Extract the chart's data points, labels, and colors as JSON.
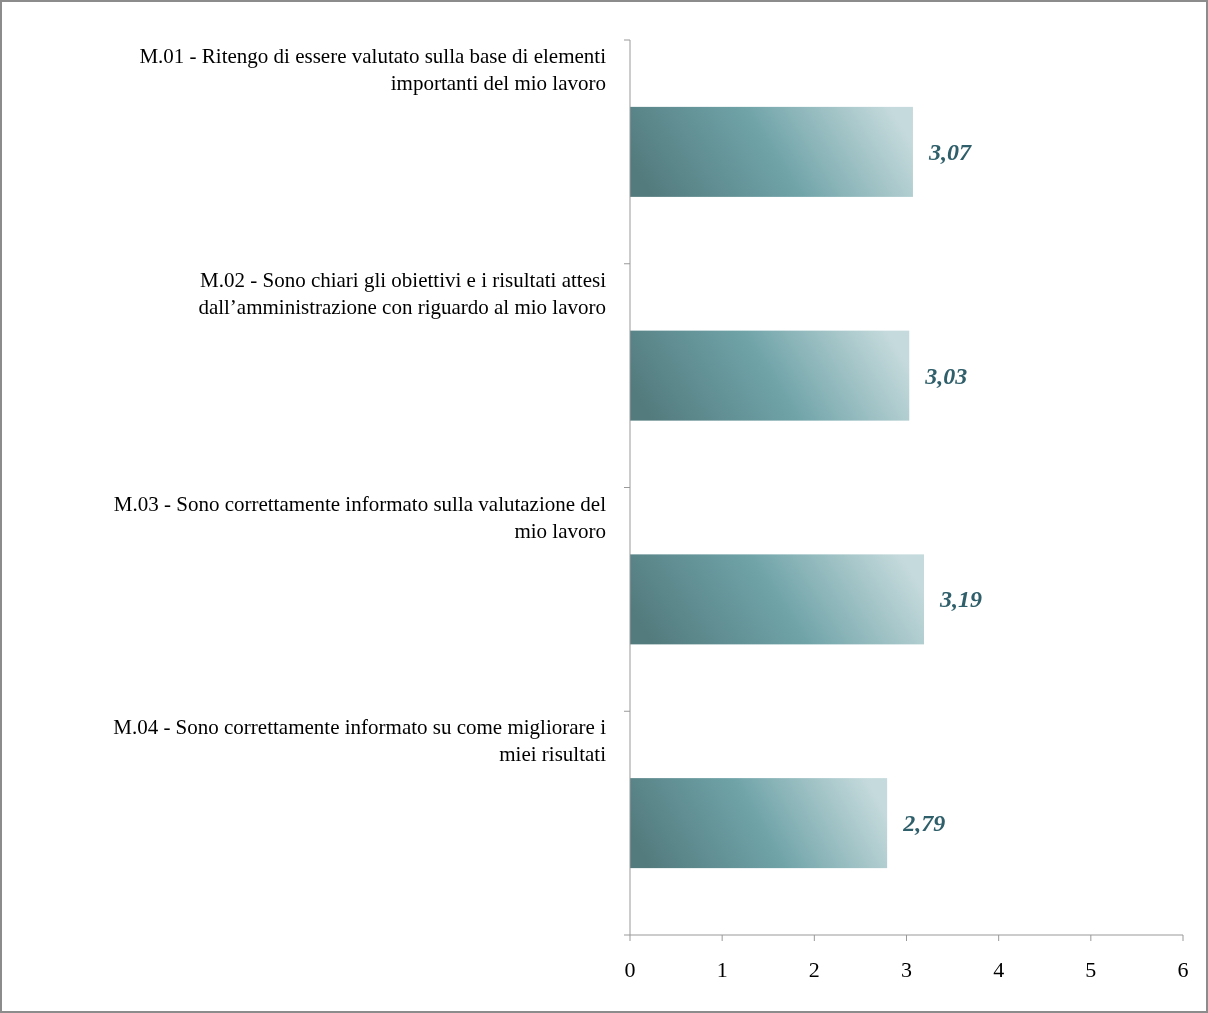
{
  "chart_data": {
    "type": "bar",
    "orientation": "horizontal",
    "categories": [
      "M.01 - Ritengo di essere valutato sulla base di elementi importanti del mio lavoro",
      "M.02 - Sono chiari gli obiettivi e i risultati attesi dall’amministrazione con riguardo al mio lavoro",
      "M.03 - Sono correttamente informato sulla valutazione del mio lavoro",
      "M.04 - Sono correttamente informato su come migliorare i miei risultati"
    ],
    "values": [
      3.07,
      3.03,
      3.19,
      2.79
    ],
    "value_labels": [
      "3,07",
      "3,03",
      "3,19",
      "2,79"
    ],
    "color": "#6fa3a8",
    "xlim": [
      0,
      6
    ],
    "xticks": [
      0,
      1,
      2,
      3,
      4,
      5,
      6
    ],
    "grid": false
  }
}
